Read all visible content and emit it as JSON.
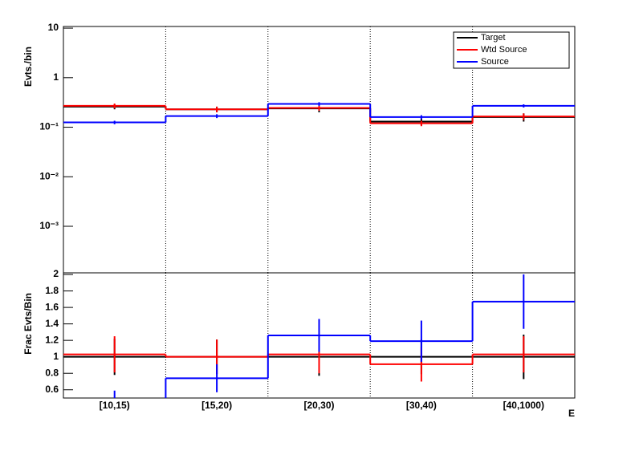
{
  "chart_data": [
    {
      "type": "step",
      "ylabel": "Evts./bin",
      "log_y": true,
      "legend": "top-right",
      "categories": [
        "[10,15)",
        "[15,20)",
        "[20,30)",
        "[30,40)",
        "[40,1000)"
      ],
      "ylim": [
        0.000115,
        10.8
      ],
      "yticks": [
        {
          "value": 0.001,
          "label": "10⁻³"
        },
        {
          "value": 0.01,
          "label": "10⁻²"
        },
        {
          "value": 0.1,
          "label": "10⁻¹"
        },
        1,
        10
      ],
      "series": [
        {
          "name": "Target",
          "color": "#000000",
          "values": [
            0.26,
            0.23,
            0.24,
            0.13,
            0.16
          ],
          "errors": [
            0.03,
            0.03,
            0.04,
            0.02,
            0.03
          ]
        },
        {
          "name": "Wtd Source",
          "color": "#ff0000",
          "values": [
            0.27,
            0.23,
            0.245,
            0.12,
            0.165
          ],
          "errors": [
            0.03,
            0.03,
            0.03,
            0.015,
            0.025
          ]
        },
        {
          "name": "Source",
          "color": "#0000ff",
          "values": [
            0.125,
            0.168,
            0.295,
            0.16,
            0.27
          ],
          "errors": [
            0.01,
            0.015,
            0.025,
            0.015,
            0.02
          ]
        }
      ]
    },
    {
      "type": "step",
      "ylabel": "Frac Evts/Bin",
      "log_y": false,
      "xlabel": "E",
      "categories": [
        "[10,15)",
        "[15,20)",
        "[20,30)",
        "[30,40)",
        "[40,1000)"
      ],
      "ylim": [
        0.5,
        2.02
      ],
      "yticks": [
        0.6,
        0.8,
        1,
        1.2,
        1.4,
        1.6,
        1.8,
        2
      ],
      "series": [
        {
          "color": "#000000",
          "values": [
            1,
            1,
            1,
            1,
            1
          ],
          "errors": [
            0.22,
            0.21,
            0.23,
            0.21,
            0.27
          ]
        },
        {
          "color": "#ff0000",
          "values": [
            1.03,
            1.0,
            1.03,
            0.91,
            1.03
          ],
          "errors": [
            0.22,
            0.21,
            0.23,
            0.21,
            0.22
          ]
        },
        {
          "color": "#0000ff",
          "values": [
            0.49,
            0.74,
            1.26,
            1.19,
            1.67
          ],
          "errors": [
            0.1,
            0.17,
            0.2,
            0.25,
            0.33
          ]
        }
      ]
    }
  ]
}
